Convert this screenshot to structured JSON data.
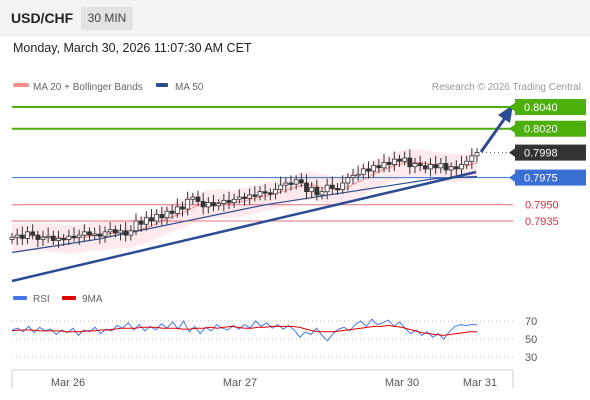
{
  "header": {
    "symbol": "USD/CHF",
    "timeframe": "30 MIN",
    "datetime": "Monday, March 30, 2026 11:07:30 AM CET"
  },
  "legend": {
    "ma20": "MA 20 + Bollinger Bands",
    "ma50": "MA 50",
    "credit": "Research © 2026 Trading Central"
  },
  "rsi_legend": {
    "rsi": "RSI",
    "ma": "9MA"
  },
  "colors": {
    "target": "#4caf0a",
    "support": "#e8707c",
    "pivot": "#3a6fd6",
    "price": "#333333",
    "trend": "#2b4c93",
    "candle_up": "#ffffff",
    "candle_down": "#333333",
    "bollinger": "#fdd7dc",
    "ma20": "#f48c8c",
    "ma50": "#2b4c93",
    "rsi": "#4477ee",
    "rsi_ma": "#e00000"
  },
  "chart_data": {
    "type": "candlestick",
    "price_levels": [
      {
        "label": "0.8040",
        "value": 0.804,
        "kind": "target"
      },
      {
        "label": "0.8020",
        "value": 0.802,
        "kind": "target"
      },
      {
        "label": "0.7998",
        "value": 0.7998,
        "kind": "price"
      },
      {
        "label": "0.7975",
        "value": 0.7975,
        "kind": "pivot"
      },
      {
        "label": "0.7950",
        "value": 0.795,
        "kind": "support"
      },
      {
        "label": "0.7935",
        "value": 0.7935,
        "kind": "support"
      }
    ],
    "x_labels": [
      "Mar 26",
      "Mar 27",
      "Mar 30",
      "Mar 31"
    ],
    "rsi_levels": [
      "70",
      "50",
      "30"
    ],
    "price_path": [
      0.792,
      0.7922,
      0.7919,
      0.7925,
      0.7922,
      0.7918,
      0.792,
      0.7921,
      0.7917,
      0.7919,
      0.7918,
      0.7921,
      0.792,
      0.7922,
      0.7925,
      0.7922,
      0.7923,
      0.7921,
      0.7925,
      0.7927,
      0.7924,
      0.7926,
      0.7922,
      0.7926,
      0.7935,
      0.7932,
      0.7938,
      0.7935,
      0.7941,
      0.7938,
      0.7944,
      0.7942,
      0.7948,
      0.7946,
      0.7955,
      0.7957,
      0.7953,
      0.7948,
      0.7952,
      0.7949,
      0.7951,
      0.7954,
      0.7952,
      0.7955,
      0.7957,
      0.7956,
      0.7959,
      0.7958,
      0.7962,
      0.7961,
      0.796,
      0.7964,
      0.7968,
      0.797,
      0.7969,
      0.7973,
      0.797,
      0.7962,
      0.7966,
      0.7959,
      0.7962,
      0.7968,
      0.7965,
      0.7964,
      0.797,
      0.7975,
      0.7977,
      0.7978,
      0.7983,
      0.7981,
      0.7986,
      0.7984,
      0.7989,
      0.7987,
      0.7992,
      0.799,
      0.7993,
      0.7985,
      0.7988,
      0.7986,
      0.7983,
      0.7987,
      0.7984,
      0.7988,
      0.7982,
      0.7985,
      0.7983,
      0.7987,
      0.799,
      0.7995,
      0.7998
    ],
    "ma50_path": [
      0.7906,
      0.7912,
      0.7918,
      0.7926,
      0.7934,
      0.7942,
      0.795,
      0.7956,
      0.7962,
      0.7968,
      0.7974,
      0.7976
    ],
    "rsi_path": [
      60,
      62,
      58,
      64,
      57,
      63,
      59,
      61,
      55,
      60,
      57,
      62,
      54,
      60,
      58,
      63,
      56,
      61,
      59,
      65,
      62,
      68,
      60,
      66,
      59,
      64,
      60,
      67,
      62,
      69,
      61,
      70,
      58,
      64,
      56,
      63,
      59,
      66,
      62,
      60,
      65,
      61,
      66,
      62,
      70,
      64,
      68,
      62,
      66,
      61,
      65,
      60,
      52,
      58,
      55,
      62,
      54,
      48,
      56,
      61,
      63,
      59,
      66,
      70,
      64,
      72,
      66,
      68,
      71,
      64,
      69,
      62,
      56,
      60,
      54,
      58,
      52,
      56,
      50,
      58,
      64,
      66,
      65,
      66,
      66
    ],
    "rsi_ma_path": [
      59,
      60,
      60,
      60,
      59,
      59,
      59,
      59,
      58,
      58,
      58,
      59,
      59,
      60,
      60,
      61,
      62,
      62,
      62,
      63,
      63,
      63,
      62,
      62,
      62,
      61,
      61,
      62,
      62,
      63,
      62,
      63,
      64,
      63,
      62,
      62,
      63,
      63,
      64,
      64,
      64,
      64,
      63,
      61,
      59,
      58,
      58,
      58,
      59,
      60,
      61,
      62,
      63,
      64,
      64,
      65,
      64,
      63,
      61,
      59,
      57,
      56,
      55,
      54,
      55,
      56,
      57,
      58,
      58
    ]
  }
}
